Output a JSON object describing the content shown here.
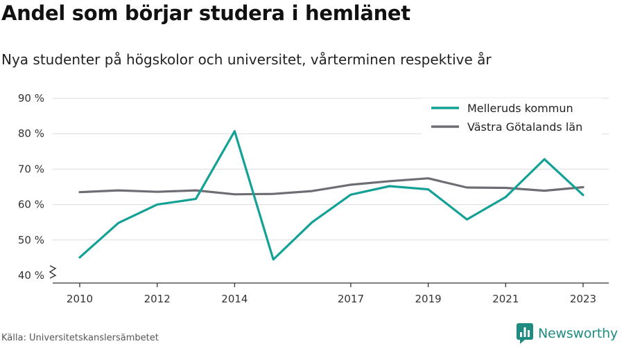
{
  "title": "Andel som börjar studera i hemlänet",
  "subtitle": "Nya studenter på högskolor och universitet, vårterminen respektive år",
  "source": "Källa: Universitetskanslersämbetet",
  "brand": {
    "name": "Newsworthy",
    "icon": "bar-chart-logo-icon",
    "color": "#1e8c80"
  },
  "chart_data": {
    "type": "line",
    "x": [
      2010,
      2011,
      2012,
      2013,
      2014,
      2015,
      2016,
      2017,
      2018,
      2019,
      2020,
      2021,
      2022,
      2023
    ],
    "x_tick_labels": [
      "2010",
      "2012",
      "2014",
      "2017",
      "2019",
      "2021",
      "2023"
    ],
    "y_ticks": [
      40,
      50,
      60,
      70,
      80,
      90
    ],
    "y_tick_labels": [
      "40 %",
      "50 %",
      "60 %",
      "70 %",
      "80 %",
      "90 %"
    ],
    "ylim": [
      40,
      90
    ],
    "grid": true,
    "y_axis_break": true,
    "legend_position": "top-right",
    "series": [
      {
        "name": "Melleruds kommun",
        "color": "#13a196",
        "values": [
          45.1,
          54.8,
          60.0,
          61.6,
          80.7,
          44.5,
          55.0,
          62.8,
          65.2,
          64.3,
          55.8,
          62.1,
          72.8,
          62.7
        ]
      },
      {
        "name": "Västra Götalands län",
        "color": "#6f6c74",
        "values": [
          63.5,
          64.0,
          63.6,
          64.0,
          62.9,
          63.0,
          63.8,
          65.6,
          66.6,
          67.4,
          64.8,
          64.7,
          63.9,
          64.9
        ]
      }
    ]
  }
}
